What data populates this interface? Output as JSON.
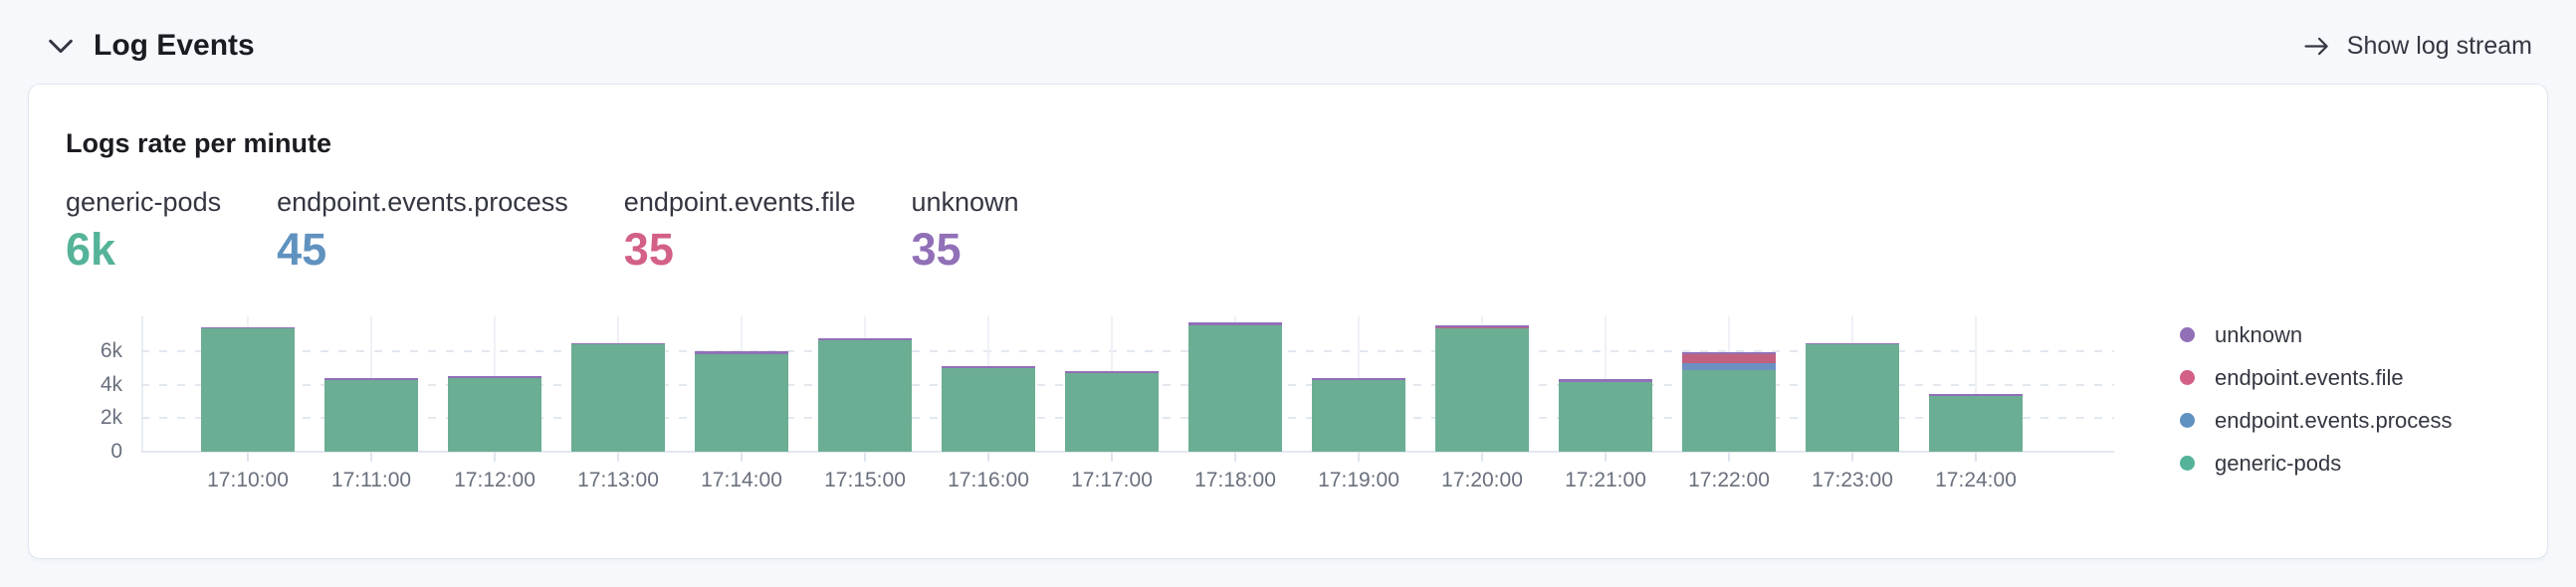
{
  "header": {
    "title": "Log Events",
    "collapse_icon": "chevron-down-icon",
    "action": {
      "label": "Show log stream",
      "icon": "arrow-right-icon"
    }
  },
  "panel": {
    "title": "Logs rate per minute"
  },
  "metrics": [
    {
      "label": "generic-pods",
      "value": "6k",
      "color": "#54B399"
    },
    {
      "label": "endpoint.events.process",
      "value": "45",
      "color": "#6092C0"
    },
    {
      "label": "endpoint.events.file",
      "value": "35",
      "color": "#D36086"
    },
    {
      "label": "unknown",
      "value": "35",
      "color": "#9170B8"
    }
  ],
  "chart_data": {
    "type": "bar",
    "stacked": true,
    "title": "Logs rate per minute",
    "xlabel": "",
    "ylabel": "",
    "categories": [
      "17:10:00",
      "17:11:00",
      "17:12:00",
      "17:13:00",
      "17:14:00",
      "17:15:00",
      "17:16:00",
      "17:17:00",
      "17:18:00",
      "17:19:00",
      "17:20:00",
      "17:21:00",
      "17:22:00",
      "17:23:00",
      "17:24:00"
    ],
    "series": [
      {
        "name": "generic-pods",
        "color": "#54B399",
        "bar_color": "#6BAE93",
        "values": [
          7350,
          4280,
          4420,
          6380,
          5830,
          6650,
          5000,
          4700,
          7560,
          4280,
          7330,
          4180,
          4850,
          6400,
          3350
        ]
      },
      {
        "name": "endpoint.events.process",
        "color": "#6092C0",
        "bar_color": "#6D90C3",
        "values": [
          0,
          0,
          0,
          0,
          0,
          0,
          0,
          0,
          0,
          0,
          0,
          0,
          440,
          0,
          0
        ]
      },
      {
        "name": "endpoint.events.file",
        "color": "#D36086",
        "bar_color": "#C2617F",
        "values": [
          0,
          0,
          0,
          0,
          0,
          0,
          0,
          0,
          0,
          0,
          40,
          0,
          510,
          0,
          0
        ]
      },
      {
        "name": "unknown",
        "color": "#9170B8",
        "bar_color": "#9170B8",
        "values": [
          60,
          30,
          30,
          40,
          170,
          60,
          40,
          40,
          180,
          40,
          80,
          150,
          120,
          60,
          20
        ]
      }
    ],
    "yticks": [
      "0",
      "2k",
      "4k",
      "6k"
    ],
    "ytick_values": [
      0,
      2000,
      4000,
      6000
    ],
    "ylim": [
      0,
      7800
    ],
    "grid": true,
    "legend_position": "right",
    "legend": [
      "unknown",
      "endpoint.events.file",
      "endpoint.events.process",
      "generic-pods"
    ]
  }
}
